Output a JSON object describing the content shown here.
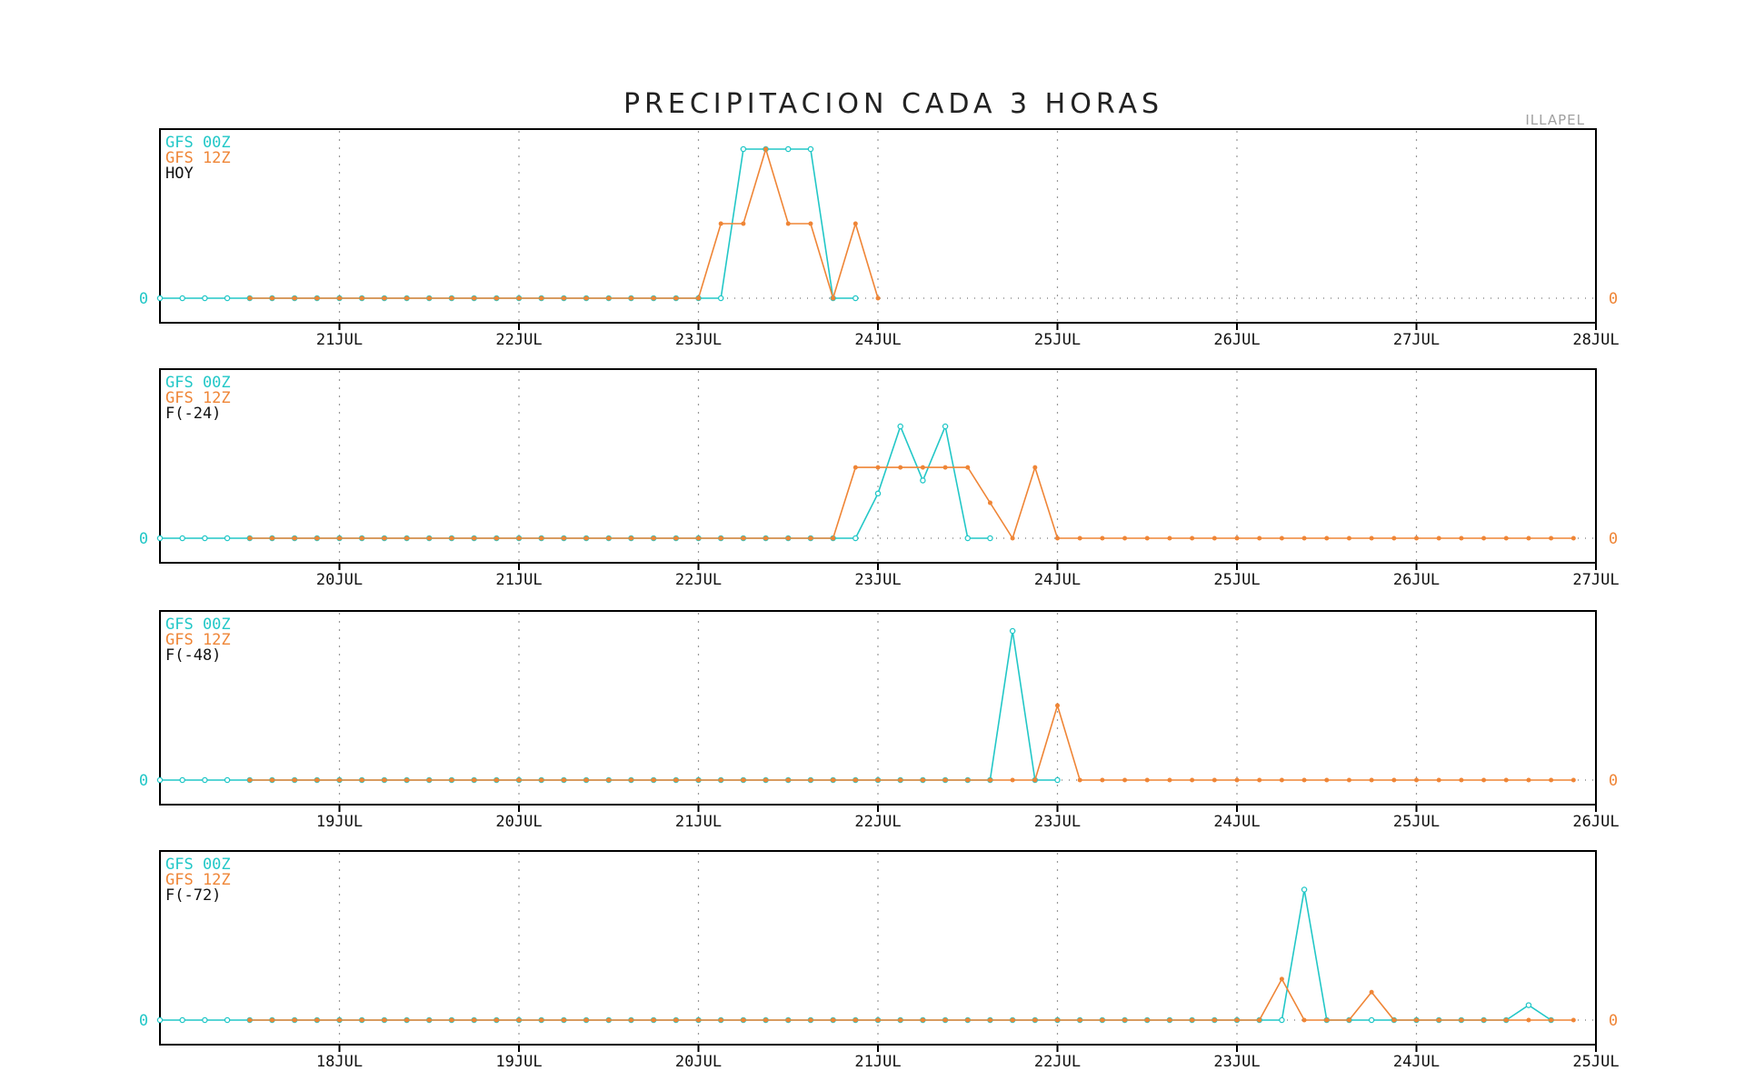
{
  "chart_title": "PRECIPITACION CADA 3 HORAS",
  "station": "ILLAPEL",
  "colors": {
    "gfs00z": "#22c7c7",
    "gfs12z": "#ef8536",
    "axis": "#000000",
    "grid": "#999999",
    "text": "#111111"
  },
  "chart_data": [
    {
      "type": "line",
      "label": "HOY",
      "series": [
        {
          "name": "GFS 00Z",
          "x": [
            0,
            25,
            26,
            27,
            29,
            30,
            31
          ],
          "values": [
            0,
            0,
            8,
            8,
            8,
            0,
            0
          ]
        },
        {
          "name": "GFS 12Z",
          "x": [
            4,
            24,
            25,
            26,
            27,
            28,
            29,
            30,
            31,
            32
          ],
          "values": [
            0,
            0,
            4,
            4,
            8,
            4,
            4,
            0,
            4,
            0
          ]
        }
      ],
      "y_label_left": "0",
      "y_label_right": "0",
      "x_tick_labels": [
        "21JUL",
        "22JUL",
        "23JUL",
        "24JUL",
        "25JUL",
        "26JUL",
        "27JUL",
        "28JUL"
      ]
    },
    {
      "type": "line",
      "label": "F(-24)",
      "series": [
        {
          "name": "GFS 00Z",
          "x": [
            0,
            31,
            32,
            33,
            34,
            35,
            36,
            37
          ],
          "values": [
            0,
            0,
            2.4,
            6,
            3.1,
            6,
            0,
            0
          ]
        },
        {
          "name": "GFS 12Z",
          "x": [
            4,
            30,
            31,
            36,
            38,
            39,
            40,
            63
          ],
          "values": [
            0,
            0,
            3.8,
            3.8,
            0,
            3.8,
            0,
            0
          ]
        }
      ],
      "y_label_left": "0",
      "y_label_right": "0",
      "x_tick_labels": [
        "20JUL",
        "21JUL",
        "22JUL",
        "23JUL",
        "24JUL",
        "25JUL",
        "26JUL",
        "27JUL"
      ]
    },
    {
      "type": "line",
      "label": "F(-48)",
      "series": [
        {
          "name": "GFS 00Z",
          "x": [
            0,
            37,
            38,
            39,
            40
          ],
          "values": [
            0,
            0,
            8,
            0,
            0
          ]
        },
        {
          "name": "GFS 12Z",
          "x": [
            4,
            39,
            40,
            41,
            63
          ],
          "values": [
            0,
            0,
            4,
            0,
            0
          ]
        }
      ],
      "y_label_left": "0",
      "y_label_right": "0",
      "x_tick_labels": [
        "19JUL",
        "20JUL",
        "21JUL",
        "22JUL",
        "23JUL",
        "24JUL",
        "25JUL",
        "26JUL"
      ]
    },
    {
      "type": "line",
      "label": "F(-72)",
      "series": [
        {
          "name": "GFS 00Z",
          "x": [
            0,
            50,
            51,
            52,
            60,
            61,
            62
          ],
          "values": [
            0,
            0,
            7,
            0,
            0,
            0.8,
            0
          ]
        },
        {
          "name": "GFS 12Z",
          "x": [
            4,
            49,
            50,
            51,
            53,
            54,
            55,
            63
          ],
          "values": [
            0,
            0,
            2.2,
            0,
            0,
            1.5,
            0,
            0
          ]
        }
      ],
      "y_label_left": "0",
      "y_label_right": "0",
      "x_tick_labels": [
        "18JUL",
        "19JUL",
        "20JUL",
        "21JUL",
        "22JUL",
        "23JUL",
        "24JUL",
        "25JUL"
      ]
    }
  ]
}
